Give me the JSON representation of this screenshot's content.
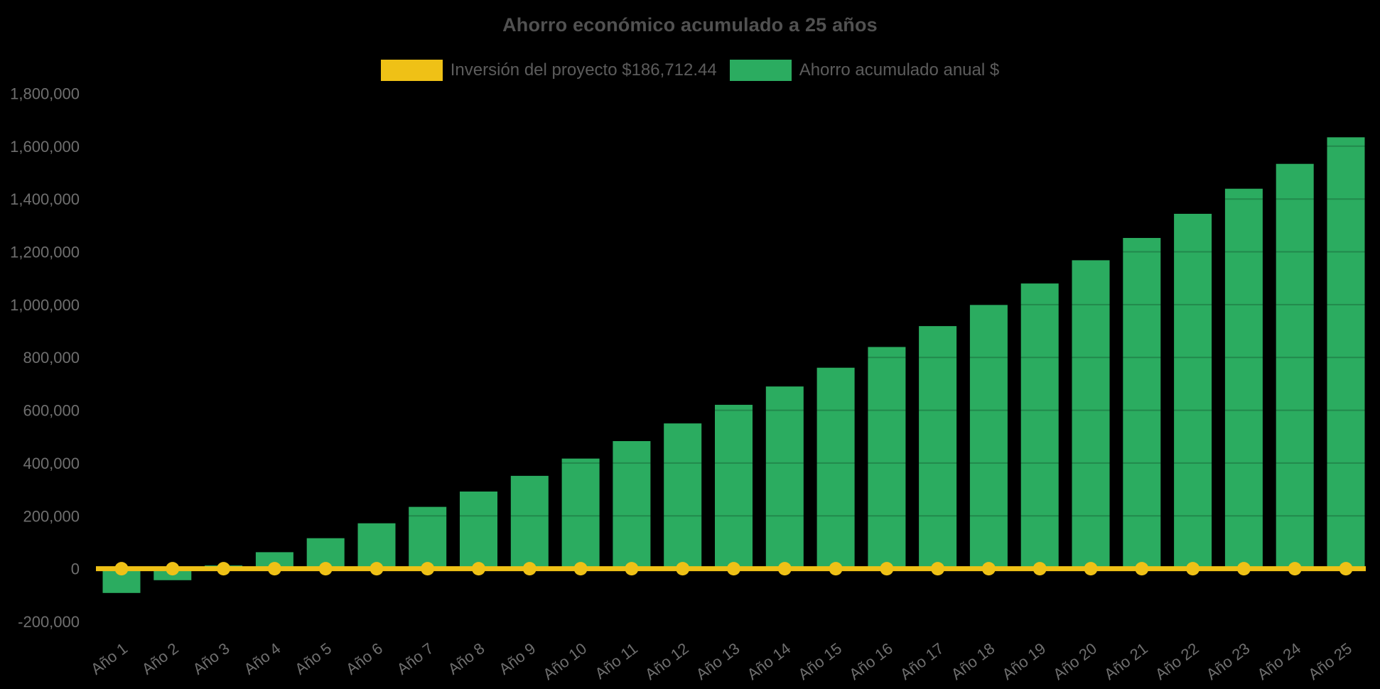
{
  "styles": {
    "background": "#000000",
    "title_color": "#515151",
    "legend_text_color": "#5c5c5c",
    "axis_tick_color": "#6f6f6f",
    "grid_overlay_color": "rgba(0,0,0,0.20)"
  },
  "chart_data": {
    "type": "bar",
    "title": "Ahorro económico acumulado a 25 años",
    "categories": [
      "Año 1",
      "Año 2",
      "Año 3",
      "Año 4",
      "Año 5",
      "Año 6",
      "Año 7",
      "Año 8",
      "Año 9",
      "Año 10",
      "Año 11",
      "Año 12",
      "Año 13",
      "Año 14",
      "Año 15",
      "Año 16",
      "Año 17",
      "Año 18",
      "Año 19",
      "Año 20",
      "Año 21",
      "Año 22",
      "Año 23",
      "Año 24",
      "Año 25"
    ],
    "series": [
      {
        "name": "Inversión del proyecto $186,712.44",
        "type": "line",
        "color": "#efc116",
        "constant_value": 0,
        "marker": "circle"
      },
      {
        "name": "Ahorro acumulado anual $",
        "type": "bar",
        "color": "#2bac60",
        "values": [
          -92000,
          -43500,
          12000,
          62500,
          115500,
          172000,
          234000,
          292000,
          351500,
          417000,
          483000,
          550000,
          620500,
          690000,
          761000,
          839500,
          918500,
          999000,
          1080000,
          1168000,
          1252500,
          1344000,
          1439000,
          1533000,
          1633500
        ]
      }
    ],
    "ylim": [
      -200000,
      1800000
    ],
    "y_tick_step": 200000,
    "y_tick_labels": [
      "-200,000",
      "0",
      "200,000",
      "400,000",
      "600,000",
      "800,000",
      "1,000,000",
      "1,200,000",
      "1,400,000",
      "1,600,000",
      "1,800,000"
    ],
    "x_tick_rotation_deg": -37,
    "legend_position": "top",
    "grid": "off"
  }
}
